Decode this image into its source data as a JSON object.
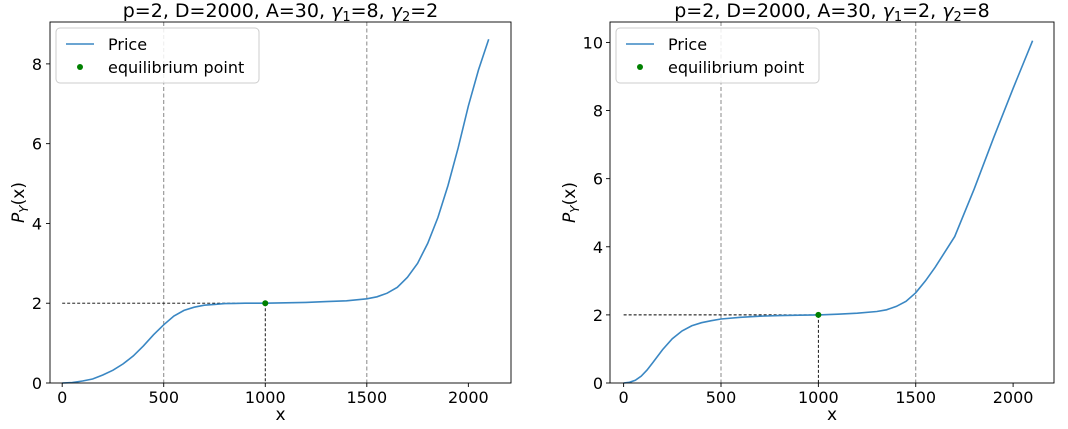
{
  "chart_data": [
    {
      "type": "line",
      "title": "p=2, D=2000, A=30, γ1=8, γ2=2",
      "title_parts": {
        "prefix": "p=2, D=2000, A=30, ",
        "g1": "8",
        "g2": "2"
      },
      "xlabel": "x",
      "ylabel": "P_Y(x)",
      "xlim": [
        -60,
        2210
      ],
      "ylim": [
        0,
        9.05
      ],
      "xticks": [
        0,
        500,
        1000,
        1500,
        2000
      ],
      "yticks": [
        0,
        2,
        4,
        6,
        8
      ],
      "grid": false,
      "legend": {
        "position": "top-left",
        "entries": [
          "Price",
          "equilibrium point"
        ]
      },
      "vlines": [
        500,
        1500
      ],
      "equilibrium_point": {
        "x": 1000,
        "y": 2.0
      },
      "series": [
        {
          "name": "Price",
          "color": "#3a87c3",
          "x": [
            0,
            50,
            100,
            150,
            200,
            250,
            300,
            350,
            400,
            450,
            500,
            550,
            600,
            650,
            700,
            750,
            800,
            850,
            900,
            950,
            1000,
            1100,
            1200,
            1300,
            1400,
            1500,
            1550,
            1600,
            1650,
            1700,
            1750,
            1800,
            1850,
            1900,
            1950,
            2000,
            2050,
            2100
          ],
          "values": [
            0.0,
            0.01,
            0.05,
            0.1,
            0.2,
            0.32,
            0.48,
            0.68,
            0.93,
            1.21,
            1.46,
            1.68,
            1.82,
            1.9,
            1.95,
            1.97,
            1.99,
            1.995,
            2.0,
            2.0,
            2.0,
            2.01,
            2.02,
            2.04,
            2.06,
            2.11,
            2.16,
            2.25,
            2.4,
            2.65,
            3.0,
            3.5,
            4.15,
            4.95,
            5.9,
            6.95,
            7.85,
            8.62
          ]
        },
        {
          "name": "equilibrium point",
          "color": "#008000",
          "x": [
            1000
          ],
          "values": [
            2.0
          ]
        }
      ]
    },
    {
      "type": "line",
      "title": "p=2, D=2000, A=30, γ1=2, γ2=8",
      "title_parts": {
        "prefix": "p=2, D=2000, A=30, ",
        "g1": "2",
        "g2": "8"
      },
      "xlabel": "x",
      "ylabel": "P_Y(x)",
      "xlim": [
        -70,
        2210
      ],
      "ylim": [
        0,
        10.6
      ],
      "xticks": [
        0,
        500,
        1000,
        1500,
        2000
      ],
      "yticks": [
        0,
        2,
        4,
        6,
        8,
        10
      ],
      "grid": false,
      "legend": {
        "position": "top-left",
        "entries": [
          "Price",
          "equilibrium point"
        ]
      },
      "vlines": [
        500,
        1500
      ],
      "equilibrium_point": {
        "x": 1000,
        "y": 2.0
      },
      "series": [
        {
          "name": "Price",
          "color": "#3a87c3",
          "x": [
            0,
            30,
            60,
            90,
            120,
            150,
            200,
            250,
            300,
            350,
            400,
            450,
            500,
            600,
            700,
            800,
            900,
            1000,
            1100,
            1200,
            1300,
            1350,
            1400,
            1450,
            1500,
            1550,
            1600,
            1700,
            1800,
            1900,
            2000,
            2100
          ],
          "values": [
            0.0,
            0.02,
            0.08,
            0.2,
            0.38,
            0.6,
            0.98,
            1.3,
            1.53,
            1.68,
            1.77,
            1.83,
            1.88,
            1.93,
            1.96,
            1.98,
            1.99,
            2.0,
            2.02,
            2.05,
            2.1,
            2.15,
            2.25,
            2.4,
            2.65,
            3.0,
            3.4,
            4.3,
            5.7,
            7.2,
            8.65,
            10.05
          ]
        },
        {
          "name": "equilibrium point",
          "color": "#008000",
          "x": [
            1000
          ],
          "values": [
            2.0
          ]
        }
      ]
    }
  ]
}
